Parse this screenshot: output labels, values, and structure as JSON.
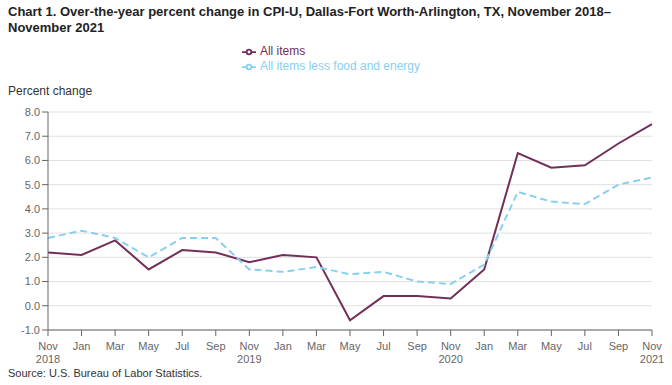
{
  "chart_data": {
    "type": "line",
    "title": "Chart 1. Over-the-year percent change in CPI-U, Dallas-Fort Worth-Arlington, TX, November 2018–\nNovember 2021",
    "y_label": "Percent change",
    "annotations": [
      "Source: U.S. Bureau of Labor Statistics."
    ],
    "categories": [
      "Nov\n2018",
      "Jan",
      "Mar",
      "May",
      "Jul",
      "Sep",
      "Nov\n2019",
      "Jan",
      "Mar",
      "May",
      "Jul",
      "Sep",
      "Nov\n2020",
      "Jan",
      "Mar",
      "May",
      "Jul",
      "Sep",
      "Nov\n2021"
    ],
    "series": [
      {
        "name": "All items",
        "color": "#722F57",
        "line_style": "solid",
        "values": [
          2.2,
          2.1,
          2.7,
          1.5,
          2.3,
          2.2,
          1.8,
          2.1,
          2.0,
          -0.6,
          0.4,
          0.4,
          0.3,
          1.5,
          6.3,
          5.7,
          5.8,
          6.7,
          7.5
        ]
      },
      {
        "name": "All items less food and energy",
        "color": "#89CFF0",
        "line_style": "dashed",
        "values": [
          2.8,
          3.1,
          2.8,
          2.0,
          2.8,
          2.8,
          1.5,
          1.4,
          1.6,
          1.3,
          1.4,
          1.0,
          0.9,
          1.7,
          4.7,
          4.3,
          4.2,
          5.0,
          5.3
        ]
      }
    ],
    "ylim": [
      -1.0,
      8.0
    ],
    "yticks": [
      {
        "value": -1,
        "label": "-1.0"
      },
      {
        "value": 0,
        "label": "0.0"
      },
      {
        "value": 1,
        "label": "1.0"
      },
      {
        "value": 2,
        "label": "2.0"
      },
      {
        "value": 3,
        "label": "3.0"
      },
      {
        "value": 4,
        "label": "4.0"
      },
      {
        "value": 5,
        "label": "5.0"
      },
      {
        "value": 6,
        "label": "6.0"
      },
      {
        "value": 7,
        "label": "7.0"
      },
      {
        "value": 8,
        "label": "8.0"
      }
    ],
    "grid": true,
    "legend": "top"
  }
}
